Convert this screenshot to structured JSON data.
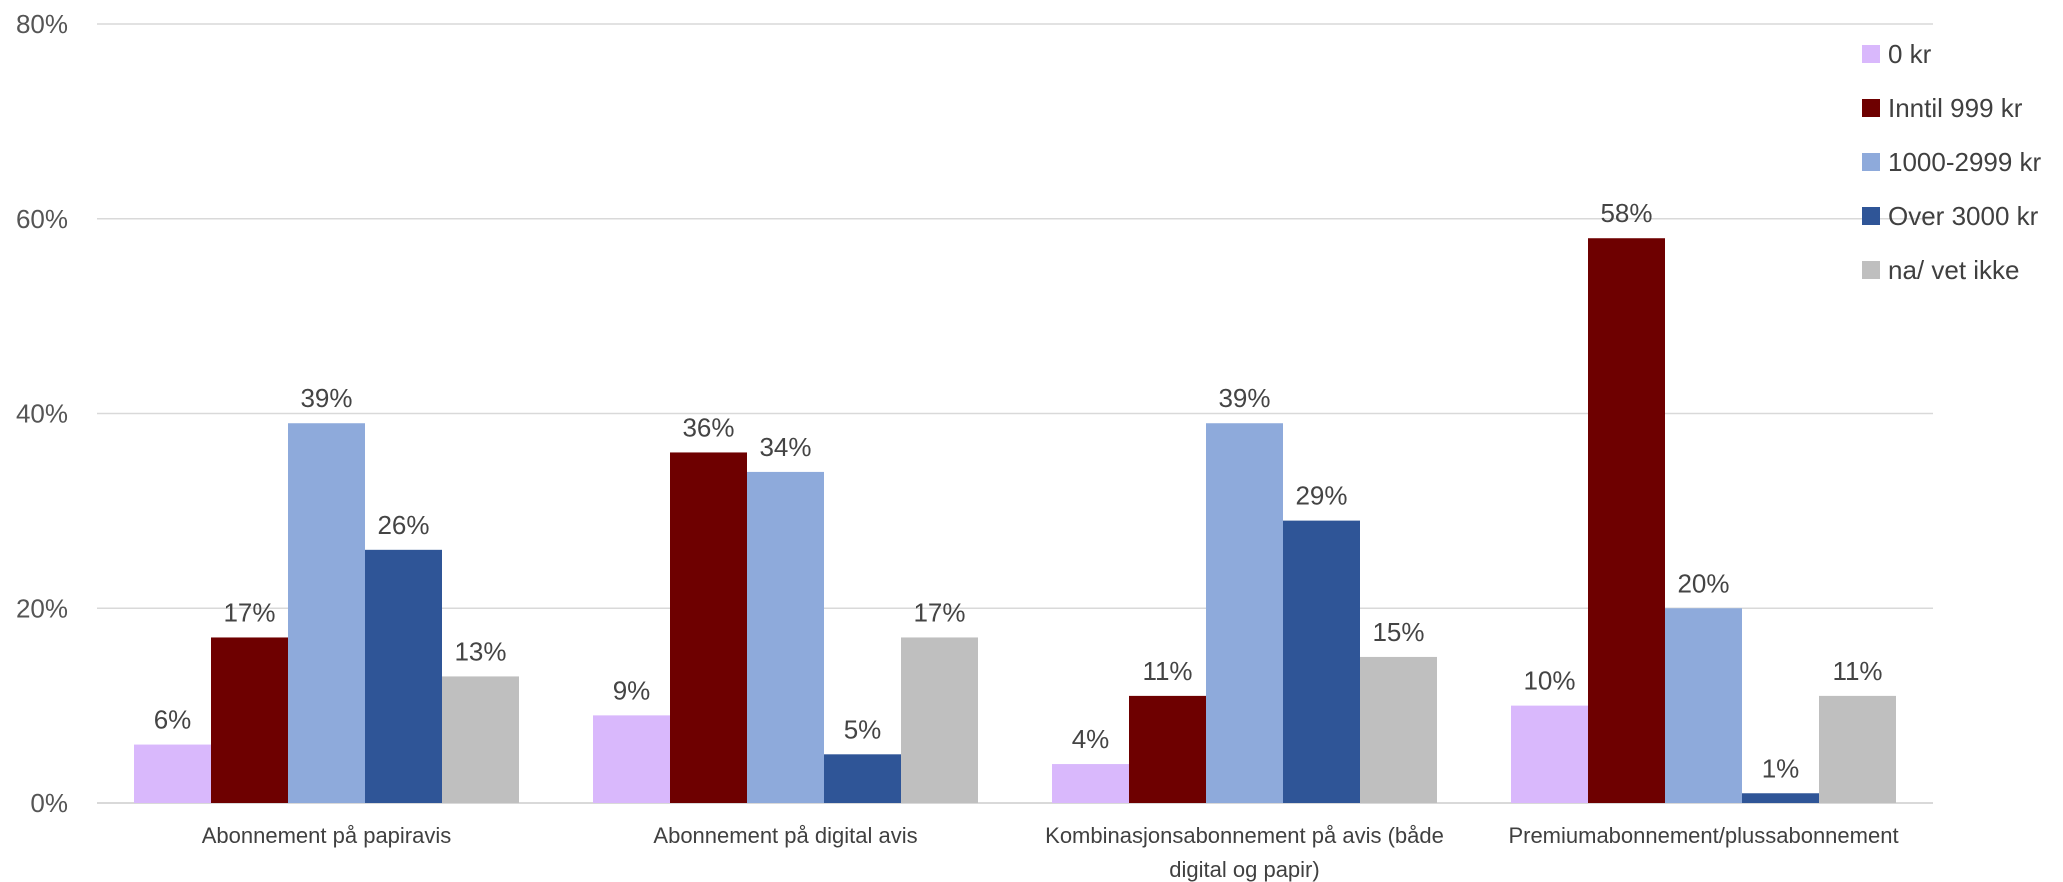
{
  "chart_data": {
    "type": "bar",
    "categories": [
      [
        "Abonnement på papiravis"
      ],
      [
        "Abonnement på digital avis"
      ],
      [
        "Kombinasjonsabonnement på avis (både",
        "digital og papir)"
      ],
      [
        "Premiumabonnement/plussabonnement"
      ]
    ],
    "series": [
      {
        "name": "0 kr",
        "color": "#d9b8fc",
        "values": [
          6,
          9,
          4,
          10
        ]
      },
      {
        "name": "Inntil 999 kr",
        "color": "#6e0000",
        "values": [
          17,
          36,
          11,
          58
        ]
      },
      {
        "name": "1000-2999 kr",
        "color": "#8eaadb",
        "values": [
          39,
          34,
          39,
          20
        ]
      },
      {
        "name": "Over 3000 kr",
        "color": "#2f5597",
        "values": [
          26,
          5,
          29,
          1
        ]
      },
      {
        "name": "na/ vet ikke",
        "color": "#bfbfbf",
        "values": [
          13,
          17,
          15,
          11
        ]
      }
    ],
    "value_suffix": "%",
    "ylim": [
      0,
      80
    ],
    "yticks": [
      0,
      20,
      40,
      60,
      80
    ],
    "grid": true,
    "legend_position": "right"
  }
}
